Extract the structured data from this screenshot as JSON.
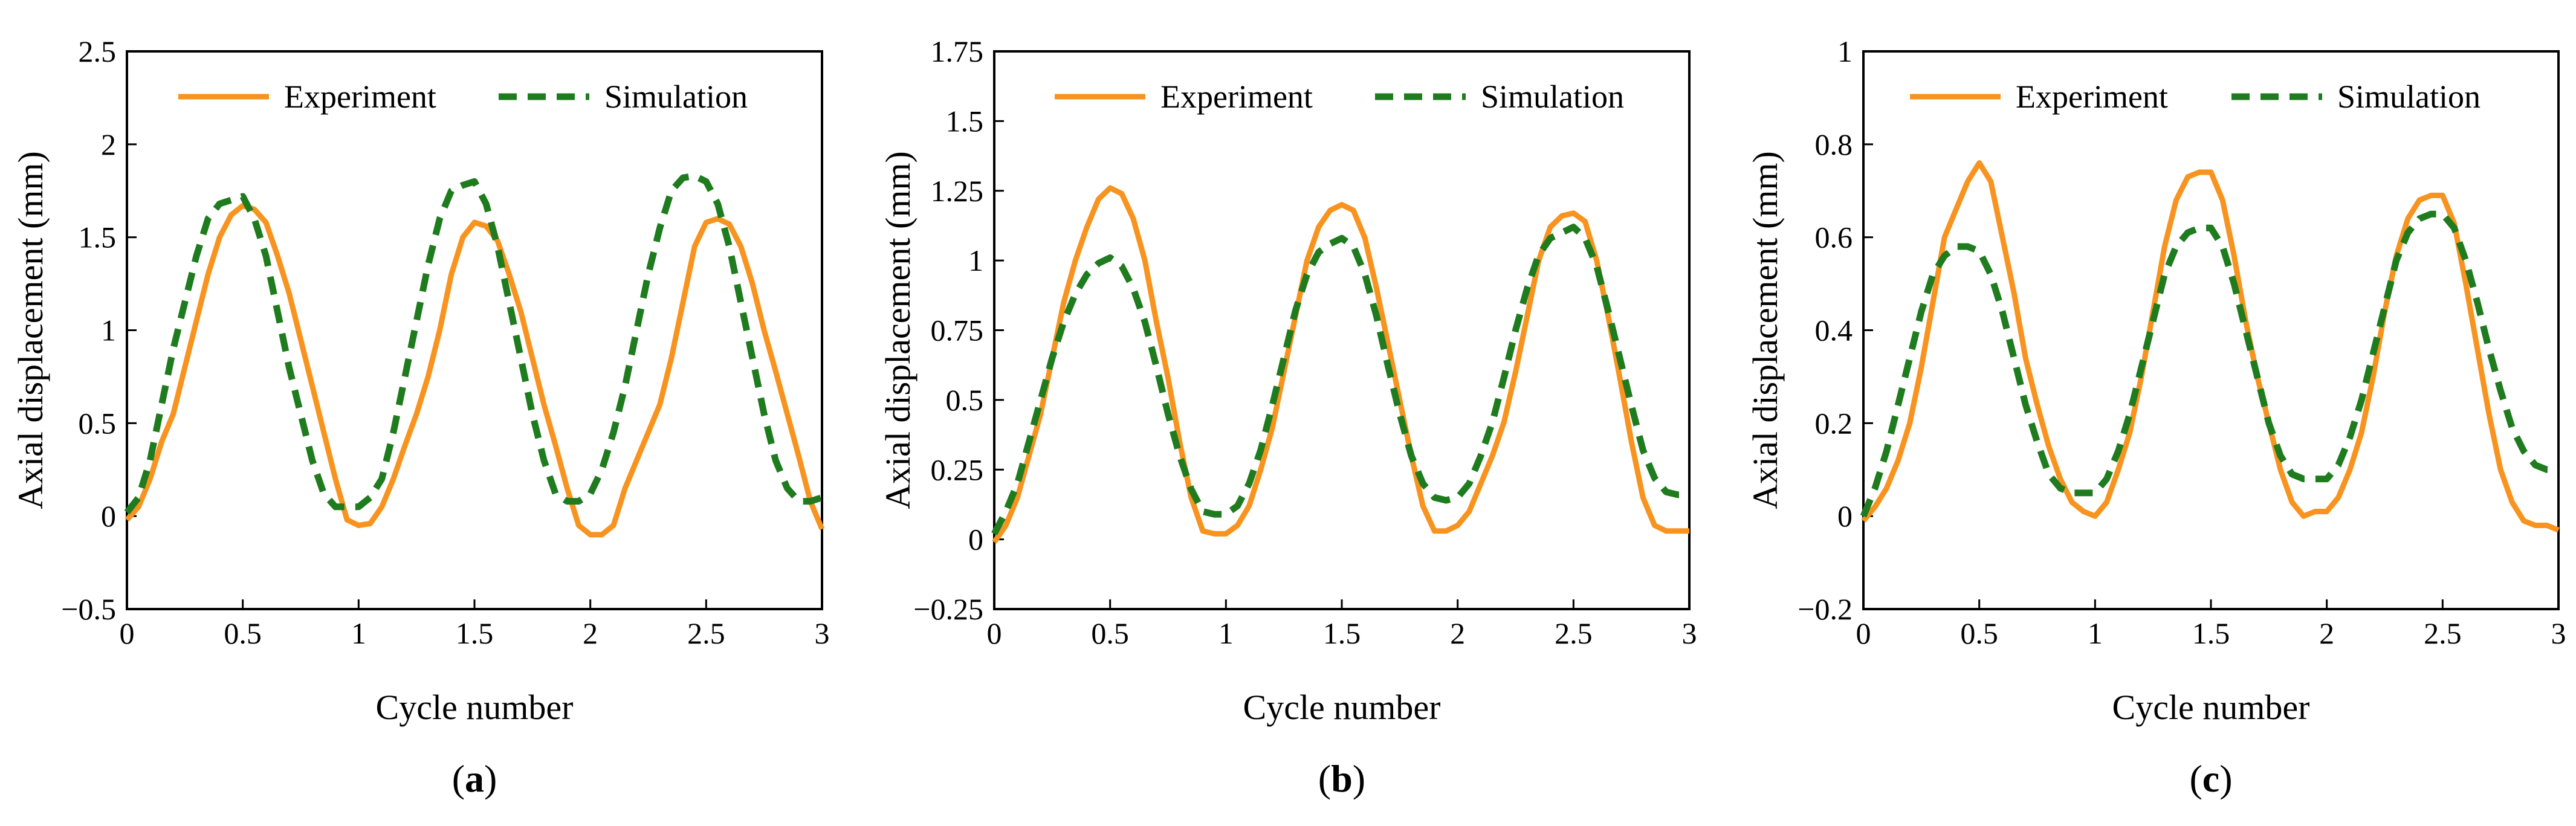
{
  "chart_data": [
    {
      "type": "line",
      "panel_label": "a",
      "xlabel": "Cycle number",
      "ylabel": "Axial displacement (mm)",
      "xlim": [
        0,
        3
      ],
      "ylim": [
        -0.5,
        2.5
      ],
      "x_ticks": [
        0,
        0.5,
        1,
        1.5,
        2,
        2.5,
        3
      ],
      "x_tick_labels": [
        "0",
        "0.5",
        "1",
        "1.5",
        "2",
        "2.5",
        "3"
      ],
      "y_ticks": [
        -0.5,
        0,
        0.5,
        1,
        1.5,
        2,
        2.5
      ],
      "y_tick_labels": [
        "−0.5",
        "0",
        "0.5",
        "1",
        "1.5",
        "2",
        "2.5"
      ],
      "legend_position": "top",
      "series": [
        {
          "name": "Experiment",
          "color": "#f7931e",
          "style": "solid",
          "x": [
            0,
            0.05,
            0.1,
            0.15,
            0.2,
            0.25,
            0.3,
            0.35,
            0.4,
            0.45,
            0.5,
            0.55,
            0.6,
            0.65,
            0.7,
            0.75,
            0.8,
            0.85,
            0.9,
            0.95,
            1.0,
            1.05,
            1.1,
            1.15,
            1.2,
            1.25,
            1.3,
            1.35,
            1.4,
            1.45,
            1.5,
            1.55,
            1.6,
            1.65,
            1.7,
            1.75,
            1.8,
            1.85,
            1.9,
            1.95,
            2.0,
            2.05,
            2.1,
            2.15,
            2.2,
            2.25,
            2.3,
            2.35,
            2.4,
            2.45,
            2.5,
            2.55,
            2.6,
            2.65,
            2.7,
            2.75,
            2.8,
            2.85,
            2.9,
            2.95,
            3.0
          ],
          "values": [
            -0.02,
            0.05,
            0.2,
            0.4,
            0.55,
            0.8,
            1.05,
            1.3,
            1.5,
            1.62,
            1.67,
            1.65,
            1.58,
            1.4,
            1.2,
            0.95,
            0.7,
            0.45,
            0.2,
            -0.02,
            -0.05,
            -0.04,
            0.05,
            0.2,
            0.38,
            0.55,
            0.75,
            1.0,
            1.3,
            1.5,
            1.58,
            1.56,
            1.48,
            1.3,
            1.1,
            0.85,
            0.6,
            0.38,
            0.15,
            -0.05,
            -0.1,
            -0.1,
            -0.05,
            0.15,
            0.3,
            0.45,
            0.6,
            0.85,
            1.15,
            1.45,
            1.58,
            1.6,
            1.57,
            1.45,
            1.25,
            1.0,
            0.78,
            0.55,
            0.32,
            0.08,
            -0.07
          ]
        },
        {
          "name": "Simulation",
          "color": "#1e7b1e",
          "style": "dashed",
          "x": [
            0,
            0.05,
            0.1,
            0.15,
            0.2,
            0.25,
            0.3,
            0.35,
            0.4,
            0.45,
            0.5,
            0.55,
            0.6,
            0.65,
            0.7,
            0.75,
            0.8,
            0.85,
            0.9,
            0.95,
            1.0,
            1.05,
            1.1,
            1.15,
            1.2,
            1.25,
            1.3,
            1.35,
            1.4,
            1.45,
            1.5,
            1.55,
            1.6,
            1.65,
            1.7,
            1.75,
            1.8,
            1.85,
            1.9,
            1.95,
            2.0,
            2.05,
            2.1,
            2.15,
            2.2,
            2.25,
            2.3,
            2.35,
            2.4,
            2.45,
            2.5,
            2.55,
            2.6,
            2.65,
            2.7,
            2.75,
            2.8,
            2.85,
            2.9,
            2.95,
            3.0
          ],
          "values": [
            0.02,
            0.1,
            0.3,
            0.6,
            0.9,
            1.15,
            1.4,
            1.6,
            1.68,
            1.7,
            1.72,
            1.6,
            1.4,
            1.1,
            0.8,
            0.55,
            0.3,
            0.12,
            0.05,
            0.05,
            0.05,
            0.1,
            0.2,
            0.45,
            0.75,
            1.05,
            1.35,
            1.6,
            1.75,
            1.78,
            1.8,
            1.68,
            1.45,
            1.15,
            0.85,
            0.55,
            0.3,
            0.12,
            0.08,
            0.08,
            0.12,
            0.25,
            0.45,
            0.7,
            1.0,
            1.3,
            1.55,
            1.75,
            1.82,
            1.83,
            1.8,
            1.68,
            1.45,
            1.15,
            0.85,
            0.55,
            0.3,
            0.15,
            0.08,
            0.08,
            0.1
          ]
        }
      ]
    },
    {
      "type": "line",
      "panel_label": "b",
      "xlabel": "Cycle number",
      "ylabel": "Axial displacement (mm)",
      "xlim": [
        0,
        3
      ],
      "ylim": [
        -0.25,
        1.75
      ],
      "x_ticks": [
        0,
        0.5,
        1,
        1.5,
        2,
        2.5,
        3
      ],
      "x_tick_labels": [
        "0",
        "0.5",
        "1",
        "1.5",
        "2",
        "2.5",
        "3"
      ],
      "y_ticks": [
        -0.25,
        0,
        0.25,
        0.5,
        0.75,
        1,
        1.25,
        1.5,
        1.75
      ],
      "y_tick_labels": [
        "−0.25",
        "0",
        "0.25",
        "0.5",
        "0.75",
        "1",
        "1.25",
        "1.5",
        "1.75"
      ],
      "legend_position": "top",
      "series": [
        {
          "name": "Experiment",
          "color": "#f7931e",
          "style": "solid",
          "x": [
            0,
            0.05,
            0.1,
            0.15,
            0.2,
            0.25,
            0.3,
            0.35,
            0.4,
            0.45,
            0.5,
            0.55,
            0.6,
            0.65,
            0.7,
            0.75,
            0.8,
            0.85,
            0.9,
            0.95,
            1.0,
            1.05,
            1.1,
            1.15,
            1.2,
            1.25,
            1.3,
            1.35,
            1.4,
            1.45,
            1.5,
            1.55,
            1.6,
            1.65,
            1.7,
            1.75,
            1.8,
            1.85,
            1.9,
            1.95,
            2.0,
            2.05,
            2.1,
            2.15,
            2.2,
            2.25,
            2.3,
            2.35,
            2.4,
            2.45,
            2.5,
            2.55,
            2.6,
            2.65,
            2.7,
            2.75,
            2.8,
            2.85,
            2.9,
            2.95,
            3.0
          ],
          "values": [
            -0.01,
            0.05,
            0.15,
            0.3,
            0.45,
            0.65,
            0.85,
            1.0,
            1.12,
            1.22,
            1.26,
            1.24,
            1.15,
            1.0,
            0.78,
            0.58,
            0.35,
            0.15,
            0.03,
            0.02,
            0.02,
            0.05,
            0.12,
            0.25,
            0.4,
            0.6,
            0.8,
            1.0,
            1.12,
            1.18,
            1.2,
            1.18,
            1.08,
            0.9,
            0.7,
            0.5,
            0.3,
            0.12,
            0.03,
            0.03,
            0.05,
            0.1,
            0.2,
            0.3,
            0.42,
            0.6,
            0.8,
            1.0,
            1.12,
            1.16,
            1.17,
            1.14,
            1.0,
            0.8,
            0.58,
            0.35,
            0.15,
            0.05,
            0.03,
            0.03,
            0.03
          ]
        },
        {
          "name": "Simulation",
          "color": "#1e7b1e",
          "style": "dashed",
          "x": [
            0,
            0.05,
            0.1,
            0.15,
            0.2,
            0.25,
            0.3,
            0.35,
            0.4,
            0.45,
            0.5,
            0.55,
            0.6,
            0.65,
            0.7,
            0.75,
            0.8,
            0.85,
            0.9,
            0.95,
            1.0,
            1.05,
            1.1,
            1.15,
            1.2,
            1.25,
            1.3,
            1.35,
            1.4,
            1.45,
            1.5,
            1.55,
            1.6,
            1.65,
            1.7,
            1.75,
            1.8,
            1.85,
            1.9,
            1.95,
            2.0,
            2.05,
            2.1,
            2.15,
            2.2,
            2.25,
            2.3,
            2.35,
            2.4,
            2.45,
            2.5,
            2.55,
            2.6,
            2.65,
            2.7,
            2.75,
            2.8,
            2.85,
            2.9,
            2.95,
            3.0
          ],
          "values": [
            0.02,
            0.1,
            0.2,
            0.35,
            0.5,
            0.65,
            0.78,
            0.88,
            0.95,
            0.99,
            1.01,
            0.98,
            0.9,
            0.78,
            0.62,
            0.45,
            0.3,
            0.18,
            0.1,
            0.09,
            0.09,
            0.12,
            0.2,
            0.32,
            0.48,
            0.65,
            0.82,
            0.95,
            1.03,
            1.06,
            1.08,
            1.05,
            0.95,
            0.8,
            0.62,
            0.45,
            0.3,
            0.2,
            0.15,
            0.14,
            0.15,
            0.2,
            0.3,
            0.42,
            0.58,
            0.75,
            0.9,
            1.02,
            1.08,
            1.1,
            1.12,
            1.08,
            0.98,
            0.82,
            0.65,
            0.48,
            0.32,
            0.22,
            0.17,
            0.16,
            0.16
          ]
        }
      ]
    },
    {
      "type": "line",
      "panel_label": "c",
      "xlabel": "Cycle number",
      "ylabel": "Axial displacement (mm)",
      "xlim": [
        0,
        3
      ],
      "ylim": [
        -0.2,
        1
      ],
      "x_ticks": [
        0,
        0.5,
        1,
        1.5,
        2,
        2.5,
        3
      ],
      "x_tick_labels": [
        "0",
        "0.5",
        "1",
        "1.5",
        "2",
        "2.5",
        "3"
      ],
      "y_ticks": [
        -0.2,
        0,
        0.2,
        0.4,
        0.6,
        0.8,
        1
      ],
      "y_tick_labels": [
        "−0.2",
        "0",
        "0.2",
        "0.4",
        "0.6",
        "0.8",
        "1"
      ],
      "legend_position": "top",
      "series": [
        {
          "name": "Experiment",
          "color": "#f7931e",
          "style": "solid",
          "x": [
            0,
            0.05,
            0.1,
            0.15,
            0.2,
            0.25,
            0.3,
            0.35,
            0.4,
            0.45,
            0.5,
            0.55,
            0.6,
            0.65,
            0.7,
            0.75,
            0.8,
            0.85,
            0.9,
            0.95,
            1.0,
            1.05,
            1.1,
            1.15,
            1.2,
            1.25,
            1.3,
            1.35,
            1.4,
            1.45,
            1.5,
            1.55,
            1.6,
            1.65,
            1.7,
            1.75,
            1.8,
            1.85,
            1.9,
            1.95,
            2.0,
            2.05,
            2.1,
            2.15,
            2.2,
            2.25,
            2.3,
            2.35,
            2.4,
            2.45,
            2.5,
            2.55,
            2.6,
            2.65,
            2.7,
            2.75,
            2.8,
            2.85,
            2.9,
            2.95,
            3.0
          ],
          "values": [
            -0.01,
            0.02,
            0.06,
            0.12,
            0.2,
            0.32,
            0.46,
            0.6,
            0.66,
            0.72,
            0.76,
            0.72,
            0.6,
            0.48,
            0.34,
            0.24,
            0.15,
            0.08,
            0.03,
            0.01,
            0.0,
            0.03,
            0.1,
            0.18,
            0.3,
            0.44,
            0.58,
            0.68,
            0.73,
            0.74,
            0.74,
            0.68,
            0.56,
            0.42,
            0.3,
            0.2,
            0.1,
            0.03,
            0.0,
            0.01,
            0.01,
            0.04,
            0.1,
            0.18,
            0.3,
            0.44,
            0.56,
            0.64,
            0.68,
            0.69,
            0.69,
            0.63,
            0.5,
            0.36,
            0.22,
            0.1,
            0.03,
            -0.01,
            -0.02,
            -0.02,
            -0.03
          ]
        },
        {
          "name": "Simulation",
          "color": "#1e7b1e",
          "style": "dashed",
          "x": [
            0,
            0.05,
            0.1,
            0.15,
            0.2,
            0.25,
            0.3,
            0.35,
            0.4,
            0.45,
            0.5,
            0.55,
            0.6,
            0.65,
            0.7,
            0.75,
            0.8,
            0.85,
            0.9,
            0.95,
            1.0,
            1.05,
            1.1,
            1.15,
            1.2,
            1.25,
            1.3,
            1.35,
            1.4,
            1.45,
            1.5,
            1.55,
            1.6,
            1.65,
            1.7,
            1.75,
            1.8,
            1.85,
            1.9,
            1.95,
            2.0,
            2.05,
            2.1,
            2.15,
            2.2,
            2.25,
            2.3,
            2.35,
            2.4,
            2.45,
            2.5,
            2.55,
            2.6,
            2.65,
            2.7,
            2.75,
            2.8,
            2.85,
            2.9,
            2.95,
            3.0
          ],
          "values": [
            0.0,
            0.06,
            0.14,
            0.24,
            0.34,
            0.44,
            0.52,
            0.56,
            0.58,
            0.58,
            0.57,
            0.52,
            0.44,
            0.34,
            0.24,
            0.16,
            0.09,
            0.06,
            0.05,
            0.05,
            0.05,
            0.08,
            0.14,
            0.22,
            0.32,
            0.42,
            0.52,
            0.58,
            0.61,
            0.62,
            0.62,
            0.58,
            0.5,
            0.4,
            0.3,
            0.2,
            0.13,
            0.09,
            0.08,
            0.08,
            0.08,
            0.11,
            0.17,
            0.25,
            0.35,
            0.45,
            0.55,
            0.61,
            0.64,
            0.65,
            0.65,
            0.62,
            0.55,
            0.46,
            0.36,
            0.27,
            0.19,
            0.14,
            0.11,
            0.1,
            0.1
          ]
        }
      ]
    }
  ]
}
